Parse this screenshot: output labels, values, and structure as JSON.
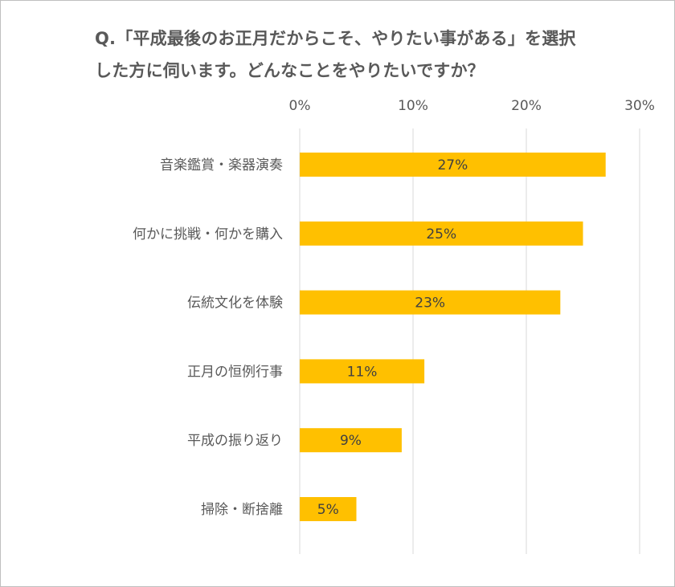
{
  "chart_data": {
    "type": "bar",
    "orientation": "horizontal",
    "title_lines": [
      "Q.「平成最後のお正月だからこそ、やりたい事がある」を選択",
      "した方に伺います。どんなことをやりたいですか？"
    ],
    "categories": [
      "音楽鑑賞・楽器演奏",
      "何かに挑戦・何かを購入",
      "伝統文化を体験",
      "正月の恒例行事",
      "平成の振り返り",
      "掃除・断捨離"
    ],
    "values": [
      27,
      25,
      23,
      11,
      9,
      5
    ],
    "data_labels": [
      "27%",
      "25%",
      "23%",
      "11%",
      "9%",
      "5%"
    ],
    "x_ticks": [
      0,
      10,
      20,
      30
    ],
    "x_tick_labels": [
      "0%",
      "10%",
      "20%",
      "30%"
    ],
    "xlim": [
      0,
      30
    ],
    "axis_position": "top",
    "grid": true,
    "bar_color": "#FFC000",
    "grid_color": "#D9D9D9",
    "text_color": "#595959",
    "xlabel": "",
    "ylabel": ""
  }
}
